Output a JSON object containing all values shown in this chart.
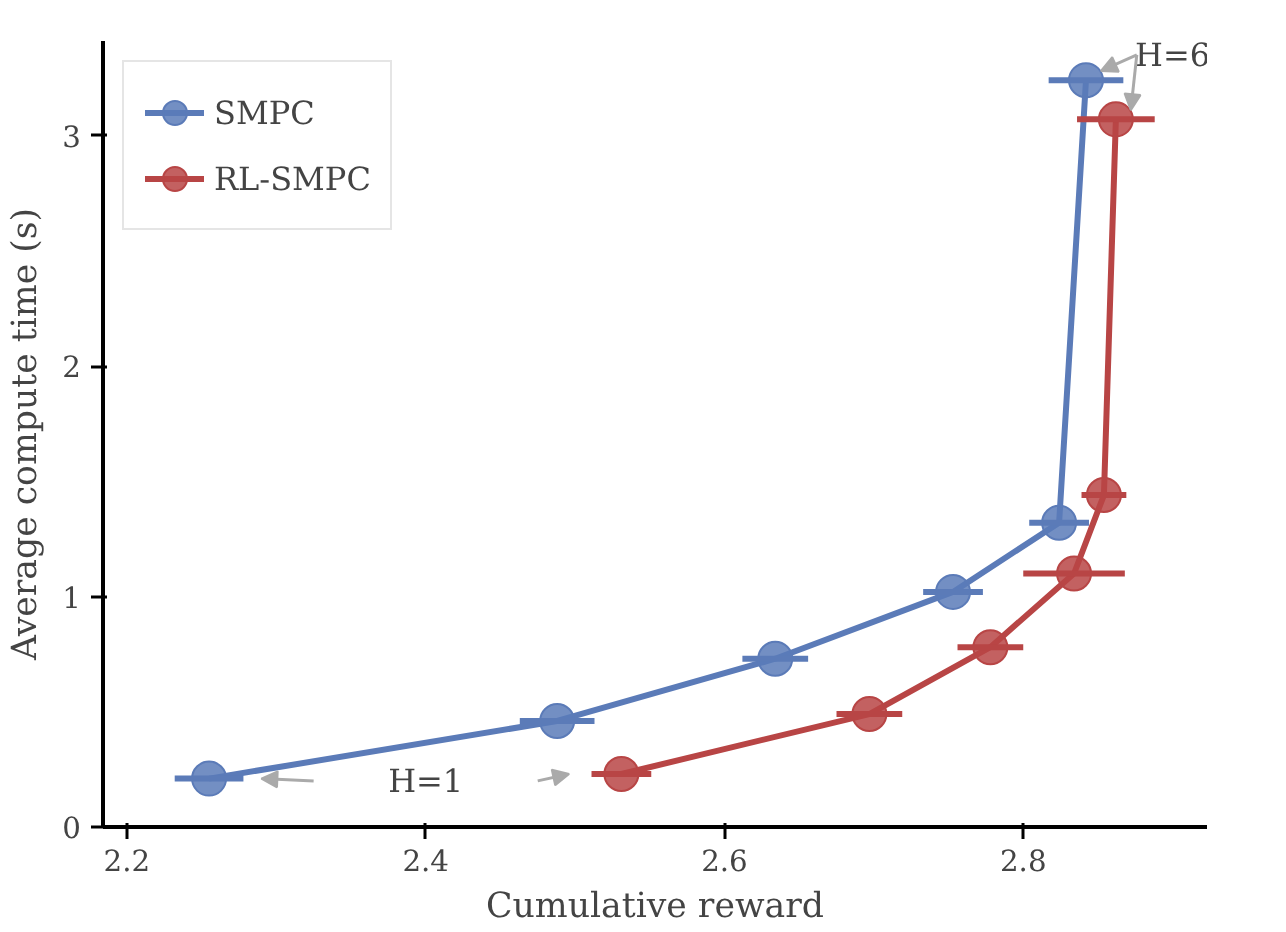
{
  "chart_data": {
    "type": "line",
    "xlabel": "Cumulative reward",
    "ylabel": "Average compute time (s)",
    "series": [
      {
        "name": "SMPC",
        "color": "#5b7bb8",
        "x": [
          2.255,
          2.488,
          2.634,
          2.753,
          2.824,
          2.842
        ],
        "values": [
          0.21,
          0.46,
          0.73,
          1.02,
          1.32,
          3.24
        ],
        "xerrors": [
          0.023,
          0.025,
          0.022,
          0.02,
          0.02,
          0.025
        ]
      },
      {
        "name": "RL-SMPC",
        "color": "#b84545",
        "x": [
          2.531,
          2.697,
          2.778,
          2.834,
          2.854,
          2.862
        ],
        "values": [
          0.23,
          0.49,
          0.78,
          1.1,
          1.44,
          3.07
        ],
        "xerrors": [
          0.02,
          0.022,
          0.022,
          0.034,
          0.015,
          0.026
        ]
      }
    ],
    "xlim": [
      2.184,
      2.923
    ],
    "ylim": [
      0,
      3.41
    ],
    "xticks": [
      2.2,
      2.4,
      2.6,
      2.8
    ],
    "yticks": [
      0,
      1,
      2,
      3
    ],
    "annotations": [
      "H=1",
      "H=6"
    ],
    "grid": false,
    "legend": "top left",
    "marker": "circle",
    "line_style": "solid"
  }
}
